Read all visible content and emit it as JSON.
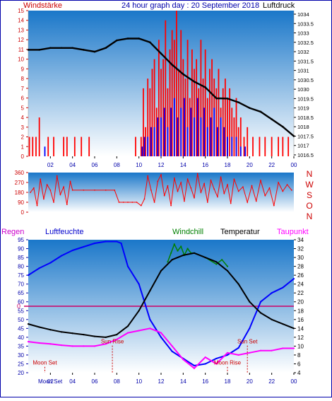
{
  "header": {
    "left_label": "Windstärke",
    "title": "24 hour graph day : 20 September 2018",
    "right_label": "Luftdruck"
  },
  "colors": {
    "panel_top": "#1a77c9",
    "panel_bottom": "#ffffff",
    "wind_red": "#ff0000",
    "wind_blue": "#0000ff",
    "pressure": "#000000",
    "humidity": "#0000ff",
    "temperature": "#000000",
    "windchill": "#008000",
    "dewpoint": "#ff00ff",
    "axis_text_blue": "#0000aa",
    "axis_text_red": "#cc0000",
    "zero_line": "#cc0066"
  },
  "x_ticks": [
    "02",
    "04",
    "06",
    "08",
    "10",
    "12",
    "14",
    "16",
    "18",
    "20",
    "22",
    "00"
  ],
  "chart_data": [
    {
      "type": "bar",
      "name_left": "Windstärke",
      "name_right": "Luftdruck",
      "x_range": [
        0,
        24
      ],
      "y_left": {
        "min": 0,
        "max": 15,
        "ticks": [
          0,
          1,
          2,
          3,
          4,
          5,
          6,
          7,
          8,
          9,
          10,
          11,
          12,
          13,
          14,
          15
        ]
      },
      "y_right": {
        "min": 1016.5,
        "max": 1034,
        "ticks": [
          "1034",
          "1033.5",
          "1033",
          "1032.5",
          "1032",
          "1031.5",
          "1031",
          "1030.5",
          "1030",
          "1019.5",
          "1019",
          "1018.5",
          "1018",
          "1017.5",
          "1017",
          "1016.5"
        ]
      },
      "series": [
        {
          "name": "wind_gust",
          "x": [
            0.1,
            0.4,
            0.7,
            1.0,
            1.8,
            2.3,
            3.2,
            3.5,
            4.2,
            4.8,
            5.5,
            9.7,
            10.2,
            10.4,
            10.6,
            10.8,
            11.0,
            11.2,
            11.4,
            11.6,
            11.8,
            12.0,
            12.2,
            12.4,
            12.6,
            12.8,
            13.0,
            13.2,
            13.4,
            13.6,
            13.8,
            14.0,
            14.2,
            14.4,
            14.6,
            14.8,
            15.0,
            15.2,
            15.4,
            15.6,
            15.8,
            16.0,
            16.2,
            16.4,
            16.6,
            16.8,
            17.0,
            17.2,
            17.4,
            17.6,
            17.8,
            18.0,
            18.2,
            18.4,
            18.6,
            18.8,
            19.0,
            19.2,
            19.5,
            19.8,
            20.3,
            20.9,
            21.4,
            22.0,
            22.6,
            23.0,
            23.5
          ],
          "values": [
            2,
            2,
            2,
            4,
            2,
            2,
            2,
            2,
            2,
            2,
            2,
            2,
            2,
            7,
            3,
            8,
            7,
            9,
            10,
            5,
            12,
            9,
            10,
            14,
            7,
            11,
            13,
            12,
            15,
            9,
            13,
            10,
            8,
            12,
            6,
            11,
            9,
            10,
            7,
            12,
            8,
            11,
            6,
            9,
            10,
            8,
            7,
            9,
            5,
            7,
            8,
            6,
            7,
            5,
            4,
            6,
            3,
            4,
            2,
            3,
            2,
            2,
            2,
            2,
            2,
            2,
            2
          ]
        },
        {
          "name": "wind_mean",
          "x": [
            1.5,
            10.3,
            10.5,
            10.8,
            11.1,
            11.4,
            11.7,
            12.0,
            12.3,
            12.6,
            12.9,
            13.2,
            13.5,
            13.8,
            14.1,
            14.4,
            14.7,
            15.0,
            15.3,
            15.6,
            15.9,
            16.2,
            16.5,
            16.8,
            17.1,
            17.4,
            17.7,
            18.0,
            18.4,
            18.8,
            19.2,
            19.6
          ],
          "values": [
            1,
            1,
            2,
            2,
            3,
            3,
            4,
            4,
            5,
            3,
            5,
            6,
            4,
            5,
            6,
            3,
            5,
            4,
            6,
            4,
            5,
            3,
            4,
            5,
            3,
            4,
            3,
            2,
            2,
            2,
            1,
            1
          ]
        },
        {
          "name": "pressure",
          "x": [
            0,
            1,
            2,
            3,
            4,
            5,
            6,
            7,
            8,
            9,
            10,
            11,
            12,
            13,
            14,
            15,
            16,
            17,
            18,
            19,
            20,
            21,
            22,
            23,
            24
          ],
          "values": [
            1032.1,
            1032.1,
            1032.2,
            1032.2,
            1032.2,
            1032.1,
            1032.0,
            1032.2,
            1032.6,
            1032.7,
            1032.7,
            1032.5,
            1031.9,
            1031.3,
            1030.8,
            1030.4,
            1030.1,
            1019.8,
            1019.6,
            1019.3,
            1019.0,
            1018.8,
            1018.4,
            1018.0,
            1017.5
          ]
        }
      ]
    },
    {
      "type": "line",
      "name_right": "NWSON",
      "right_letters": [
        "N",
        "W",
        "S",
        "O",
        "N"
      ],
      "x_range": [
        0,
        24
      ],
      "y": {
        "min": 0,
        "max": 360,
        "ticks": [
          "360",
          "270",
          "180",
          "90",
          "0"
        ]
      },
      "series": [
        {
          "name": "wind_direction",
          "x": [
            0.2,
            0.5,
            0.8,
            1.1,
            1.4,
            1.7,
            2.0,
            2.3,
            2.6,
            2.9,
            3.2,
            3.5,
            3.8,
            4.0,
            5.0,
            6.0,
            7.0,
            7.8,
            8.2,
            8.6,
            9.0,
            9.4,
            9.8,
            10.2,
            10.5,
            10.8,
            11.1,
            11.4,
            11.7,
            12.0,
            12.3,
            12.6,
            12.9,
            13.2,
            13.5,
            13.8,
            14.1,
            14.4,
            14.7,
            15.0,
            15.3,
            15.6,
            15.9,
            16.2,
            16.5,
            16.8,
            17.1,
            17.4,
            17.7,
            18.0,
            18.3,
            18.6,
            19.0,
            19.4,
            19.8,
            20.2,
            20.6,
            21.0,
            21.4,
            21.8,
            22.2,
            22.6,
            23.0,
            23.4,
            23.8
          ],
          "values": [
            180,
            220,
            60,
            300,
            120,
            250,
            200,
            90,
            330,
            160,
            230,
            70,
            280,
            200,
            200,
            200,
            200,
            200,
            90,
            90,
            90,
            90,
            90,
            60,
            120,
            330,
            200,
            90,
            280,
            340,
            150,
            240,
            60,
            310,
            190,
            270,
            100,
            300,
            220,
            130,
            350,
            180,
            260,
            90,
            290,
            210,
            140,
            320,
            170,
            250,
            80,
            300,
            190,
            230,
            90,
            240,
            100,
            290,
            150,
            220,
            60,
            270,
            190,
            250,
            200
          ]
        }
      ]
    },
    {
      "type": "line",
      "legend": [
        "Regen",
        "Luftfeuchte",
        "Windchill",
        "Temperatur",
        "Taupunkt"
      ],
      "x_range": [
        0,
        24
      ],
      "y_left": {
        "min": 20,
        "max": 95,
        "ticks": [
          "95",
          "90",
          "85",
          "80",
          "75",
          "70",
          "65",
          "60",
          "55",
          "50",
          "45",
          "40",
          "35",
          "30",
          "25",
          "20"
        ]
      },
      "y_right": {
        "min": 4,
        "max": 34,
        "ticks": [
          "34",
          "32",
          "30",
          "28",
          "26",
          "24",
          "22",
          "20",
          "18",
          "16",
          "14",
          "12",
          "10",
          "8",
          "6",
          "4"
        ]
      },
      "zero_label": "0",
      "series": [
        {
          "name": "Luftfeuchte",
          "x": [
            0,
            1,
            2,
            3,
            4,
            5,
            6,
            7,
            8,
            8.4,
            9,
            10,
            11,
            12,
            13,
            14,
            15,
            16,
            17,
            18,
            19,
            20,
            21,
            22,
            23,
            24
          ],
          "values": [
            75,
            79,
            82,
            86,
            89,
            91,
            93,
            94,
            94,
            93,
            80,
            70,
            50,
            40,
            32,
            28,
            24,
            25,
            28,
            30,
            34,
            45,
            60,
            65,
            68,
            73
          ]
        },
        {
          "name": "Temperatur",
          "x": [
            0,
            1,
            2,
            3,
            4,
            5,
            6,
            7,
            8,
            9,
            10,
            11,
            12,
            13,
            14,
            15,
            16,
            17,
            18,
            19,
            20,
            21,
            22,
            23,
            24
          ],
          "values": [
            15.0,
            14.3,
            13.7,
            13.2,
            12.9,
            12.6,
            12.2,
            12.0,
            12.6,
            14.5,
            18.0,
            22.5,
            27.0,
            29.5,
            30.5,
            31.0,
            30.0,
            29.0,
            27.0,
            24.0,
            20.0,
            17.5,
            16.0,
            15.0,
            14.0
          ]
        },
        {
          "name": "Windchill",
          "x": [
            12.6,
            12.9,
            13.2,
            13.5,
            13.8,
            14.1,
            14.4,
            14.7,
            15.0,
            16.0,
            17.0,
            17.5,
            18.0
          ],
          "values": [
            29.0,
            31.0,
            33.0,
            31.5,
            32.5,
            30.5,
            32.0,
            31.0,
            31.0,
            30.0,
            28.5,
            29.5,
            28.0
          ]
        },
        {
          "name": "Taupunkt",
          "x": [
            0,
            1,
            2,
            3,
            4,
            5,
            6,
            7,
            8,
            9,
            10,
            11,
            12,
            13,
            14,
            15,
            16,
            17,
            18,
            19,
            20,
            21,
            22,
            23,
            24
          ],
          "values": [
            11.0,
            10.7,
            10.5,
            10.2,
            10.0,
            10.0,
            10.0,
            10.5,
            11.5,
            13.0,
            13.5,
            14.0,
            13.0,
            10.0,
            7.0,
            5.0,
            7.5,
            6.0,
            8.5,
            8.0,
            8.5,
            9.0,
            9.0,
            9.5,
            9.5
          ]
        }
      ],
      "annotations": [
        {
          "label": "Sun Rise",
          "x": 7.6,
          "y_frac": 0.22
        },
        {
          "label": "Sun Set",
          "x": 19.8,
          "y_frac": 0.22
        },
        {
          "label": "Moon Set",
          "x": 1.5,
          "y_frac": 0.06
        },
        {
          "label": "Moon Rise",
          "x": 18.0,
          "y_frac": 0.06
        }
      ],
      "bottom_left_label": "Moon Set"
    }
  ]
}
